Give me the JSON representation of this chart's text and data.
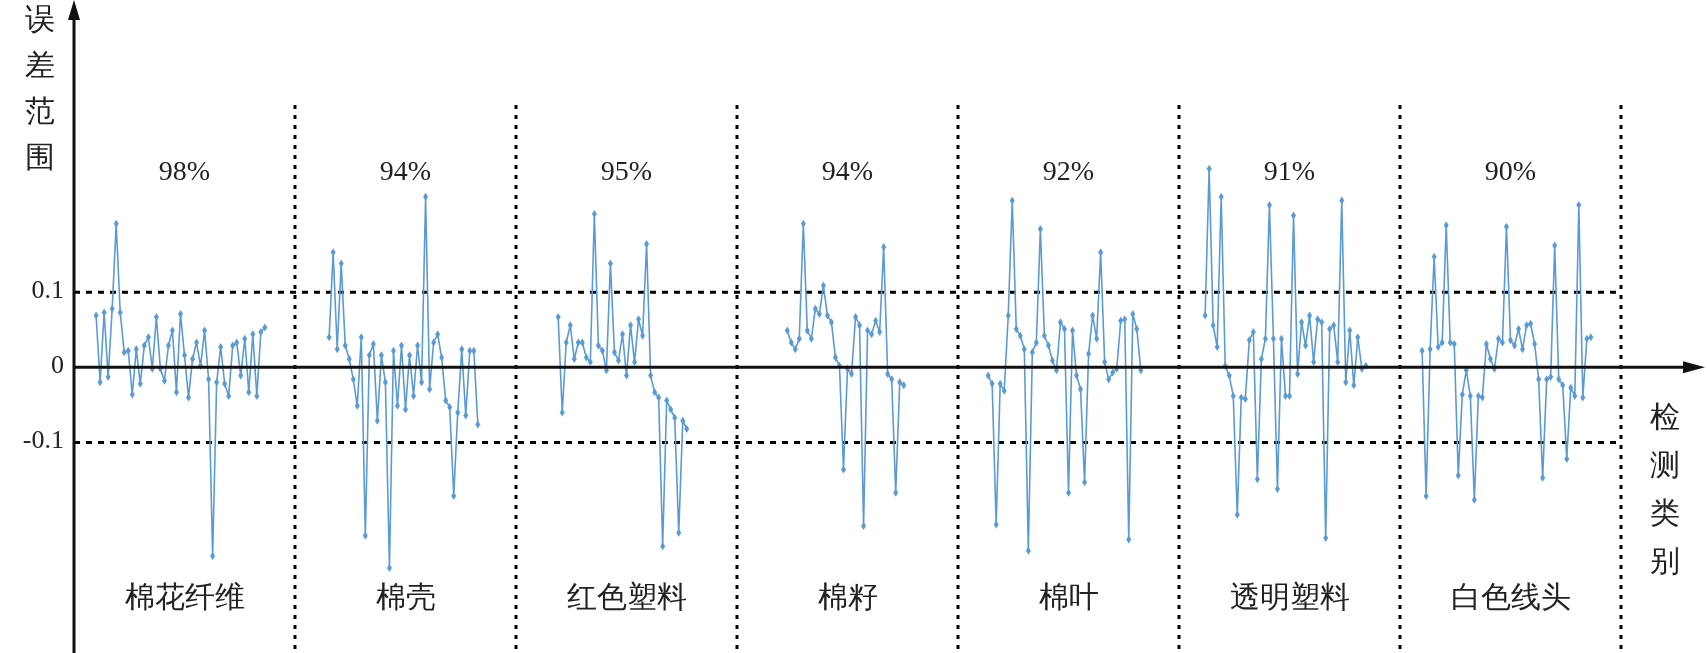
{
  "chart_data": {
    "type": "line",
    "ylabel": "误差范围",
    "xlabel": "检测类别",
    "ylim": [
      -0.38,
      0.47
    ],
    "yticks": [
      0.1,
      0,
      -0.1
    ],
    "grid": false,
    "marker": "diamond",
    "line_style": "solid",
    "ref_lines": [
      {
        "axis": "y",
        "value": 0.1,
        "line_style": "dashed",
        "color": "#000000"
      },
      {
        "axis": "y",
        "value": -0.1,
        "line_style": "dashed",
        "color": "#000000"
      }
    ],
    "annotations": [
      "98%",
      "94%",
      "95%",
      "94%",
      "92%",
      "91%",
      "90%"
    ],
    "categories": [
      null,
      null,
      null,
      null,
      null,
      null,
      null,
      null,
      null,
      null,
      null,
      null,
      null,
      null,
      null,
      null,
      null,
      null,
      null,
      null,
      null,
      null,
      null,
      null,
      null,
      null,
      null,
      "棉花纤维",
      null,
      null,
      null,
      null,
      null,
      null,
      null,
      null,
      null,
      null,
      null,
      null,
      null,
      null,
      null,
      null,
      null,
      null,
      null,
      null,
      null,
      null,
      null,
      null,
      null,
      null,
      null,
      null,
      null,
      null,
      null,
      null,
      null,
      null,
      null,
      null,
      null,
      null,
      null,
      null,
      null,
      null,
      null,
      null,
      null,
      null,
      null,
      null,
      null,
      null,
      null,
      null,
      null,
      null,
      "棉壳",
      null,
      null,
      null,
      null,
      null,
      null,
      null,
      null,
      null,
      null,
      null,
      null,
      null,
      null,
      null,
      null,
      null,
      null,
      null,
      null,
      null,
      null,
      null,
      null,
      null,
      null,
      null,
      null,
      null,
      null,
      null,
      null,
      null,
      null,
      null,
      null,
      null,
      null,
      null,
      null,
      null,
      null,
      null,
      null,
      null,
      null,
      null,
      null,
      null,
      null,
      null,
      null,
      null,
      null,
      "红色塑料",
      null,
      null,
      null,
      null,
      null,
      null,
      null,
      null,
      null,
      null,
      null,
      null,
      null,
      null,
      null,
      null,
      null,
      null,
      null,
      null,
      null,
      null,
      null,
      null,
      null,
      null,
      null,
      null,
      null,
      null,
      null,
      null,
      null,
      null,
      null,
      null,
      null,
      null,
      null,
      null,
      null,
      null,
      null,
      null,
      null,
      null,
      null,
      null,
      null,
      null,
      null,
      null,
      null,
      null,
      "棉籽",
      null,
      null,
      null,
      null,
      null,
      null,
      null,
      null,
      null,
      null,
      null,
      null,
      null,
      null,
      null,
      null,
      null,
      null,
      null,
      null,
      null,
      null,
      null,
      null,
      null,
      null,
      null,
      null,
      null,
      null,
      null,
      null,
      null,
      null,
      null,
      null,
      null,
      null,
      null,
      null,
      null,
      null,
      null,
      null,
      null,
      null,
      null,
      null,
      null,
      null,
      null,
      null,
      null,
      null,
      "棉叶",
      null,
      null,
      null,
      null,
      null,
      null,
      null,
      null,
      null,
      null,
      null,
      null,
      null,
      null,
      null,
      null,
      null,
      null,
      null,
      null,
      null,
      null,
      null,
      null,
      null,
      null,
      null,
      null,
      null,
      null,
      null,
      null,
      null,
      null,
      null,
      null,
      null,
      null,
      null,
      null,
      null,
      null,
      null,
      null,
      null,
      null,
      null,
      null,
      null,
      null,
      null,
      null,
      null,
      null,
      "透明塑料",
      null,
      null,
      null,
      null,
      null,
      null,
      null,
      null,
      null,
      null,
      null,
      null,
      null,
      null,
      null,
      null,
      null,
      null,
      null,
      null,
      null,
      null,
      null,
      null,
      null,
      null,
      null,
      null,
      null,
      null,
      null,
      null,
      null,
      null,
      null,
      null,
      null,
      null,
      null,
      null,
      null,
      null,
      null,
      null,
      null,
      null,
      null,
      null,
      null,
      null,
      null,
      null,
      null,
      null,
      "白色线头",
      null,
      null,
      null,
      null,
      null,
      null,
      null,
      null,
      null,
      null,
      null,
      null,
      null,
      null,
      null,
      null,
      null,
      null,
      null,
      null,
      null,
      null,
      null,
      null,
      null,
      null,
      null
    ],
    "series": [
      {
        "color": "#5b9bd5",
        "values": [
          null,
          null,
          null,
          null,
          null,
          0.069,
          -0.02,
          0.073,
          -0.013,
          0.078,
          0.191,
          0.073,
          0.02,
          0.022,
          -0.036,
          0.024,
          -0.022,
          0.029,
          0.04,
          -0.002,
          0.067,
          -0.002,
          -0.018,
          0.029,
          0.049,
          -0.033,
          0.071,
          0.016,
          -0.04,
          0.011,
          0.033,
          0.002,
          0.049,
          -0.016,
          -0.251,
          -0.02,
          0.027,
          -0.022,
          -0.038,
          0.029,
          0.033,
          -0.011,
          0.038,
          -0.033,
          0.044,
          -0.038,
          0.047,
          0.053,
          null,
          null,
          null,
          null,
          null,
          null,
          null,
          null,
          null,
          null,
          null,
          null,
          null,
          null,
          null,
          0.04,
          0.153,
          0.024,
          0.138,
          0.029,
          0.011,
          -0.016,
          -0.051,
          0.04,
          -0.224,
          0.016,
          0.031,
          -0.071,
          0.016,
          -0.02,
          -0.267,
          0.022,
          -0.051,
          0.029,
          -0.056,
          0.016,
          -0.038,
          0.029,
          -0.02,
          0.227,
          -0.029,
          0.033,
          0.044,
          0.013,
          -0.044,
          -0.053,
          -0.171,
          -0.06,
          0.024,
          -0.064,
          0.022,
          0.022,
          -0.076,
          null,
          null,
          null,
          null,
          null,
          null,
          null,
          null,
          null,
          null,
          null,
          null,
          null,
          null,
          null,
          null,
          null,
          null,
          null,
          0.067,
          -0.06,
          0.033,
          0.056,
          0.011,
          0.033,
          0.033,
          0.013,
          0.007,
          0.204,
          0.029,
          0.022,
          -0.004,
          0.138,
          0.02,
          0.009,
          0.044,
          -0.011,
          0.056,
          0.007,
          0.064,
          0.042,
          0.164,
          -0.011,
          -0.033,
          -0.04,
          -0.238,
          -0.044,
          -0.056,
          -0.067,
          -0.22,
          -0.071,
          -0.082,
          null,
          null,
          null,
          null,
          null,
          null,
          null,
          null,
          null,
          null,
          null,
          null,
          null,
          null,
          null,
          null,
          null,
          null,
          null,
          null,
          null,
          null,
          null,
          null,
          0.049,
          0.033,
          0.024,
          0.038,
          0.191,
          0.049,
          0.038,
          0.078,
          0.071,
          0.109,
          0.069,
          0.06,
          0.013,
          0.002,
          -0.136,
          -0.002,
          -0.009,
          0.067,
          0.056,
          -0.211,
          0.049,
          0.044,
          0.062,
          0.047,
          0.16,
          -0.009,
          -0.016,
          -0.167,
          -0.02,
          -0.024,
          null,
          null,
          null,
          null,
          null,
          null,
          null,
          null,
          null,
          null,
          null,
          null,
          null,
          null,
          null,
          null,
          null,
          null,
          null,
          null,
          -0.011,
          -0.022,
          -0.209,
          -0.022,
          -0.031,
          0.069,
          0.222,
          0.051,
          0.042,
          0.024,
          -0.244,
          0.02,
          0.033,
          0.184,
          0.042,
          0.029,
          0.009,
          -0.004,
          0.06,
          0.051,
          -0.167,
          0.049,
          -0.011,
          -0.029,
          -0.153,
          0.018,
          0.069,
          0.038,
          0.153,
          0.007,
          -0.016,
          -0.007,
          -0.002,
          0.062,
          0.064,
          -0.229,
          0.071,
          0.051,
          -0.004,
          null,
          null,
          null,
          null,
          null,
          null,
          null,
          null,
          null,
          null,
          null,
          null,
          null,
          null,
          null,
          0.069,
          0.264,
          0.056,
          0.027,
          0.227,
          0.002,
          -0.011,
          -0.038,
          -0.196,
          -0.04,
          -0.042,
          0.036,
          0.047,
          -0.149,
          0.011,
          0.038,
          0.216,
          0.038,
          -0.162,
          0.038,
          -0.038,
          -0.038,
          0.202,
          -0.009,
          0.06,
          0.029,
          0.069,
          0.007,
          0.064,
          0.06,
          -0.227,
          0.051,
          0.056,
          0.007,
          0.222,
          -0.02,
          0.049,
          -0.024,
          0.04,
          -0.002,
          0.002,
          null,
          null,
          null,
          null,
          null,
          null,
          null,
          null,
          null,
          null,
          null,
          null,
          null,
          0.022,
          -0.171,
          0.024,
          0.147,
          0.027,
          0.033,
          0.189,
          0.033,
          0.031,
          -0.144,
          -0.036,
          -0.004,
          -0.038,
          -0.176,
          -0.038,
          -0.04,
          0.031,
          0.011,
          -0.002,
          0.038,
          0.033,
          0.187,
          0.036,
          0.029,
          0.051,
          0.024,
          0.056,
          0.058,
          0.031,
          -0.016,
          -0.147,
          -0.016,
          -0.013,
          0.162,
          -0.016,
          -0.024,
          -0.122,
          -0.027,
          -0.038,
          0.216,
          -0.04,
          0.038,
          0.04,
          null,
          null,
          null,
          null,
          null,
          null,
          null
        ]
      }
    ]
  }
}
